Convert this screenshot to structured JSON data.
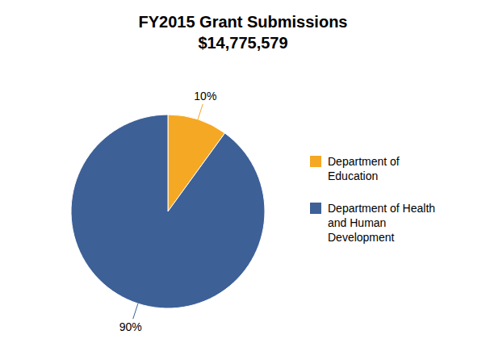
{
  "chart_data": {
    "type": "pie",
    "title": "FY2015 Grant Submissions",
    "subtitle": "$14,775,579",
    "categories": [
      "Department of\nEducation",
      "Department of Health\nand Human\nDevelopment"
    ],
    "values": [
      10,
      90
    ],
    "value_labels": [
      "10%",
      "90%"
    ],
    "colors": [
      "#F5A823",
      "#3D6097"
    ],
    "data_labels": true,
    "legend": "right"
  }
}
